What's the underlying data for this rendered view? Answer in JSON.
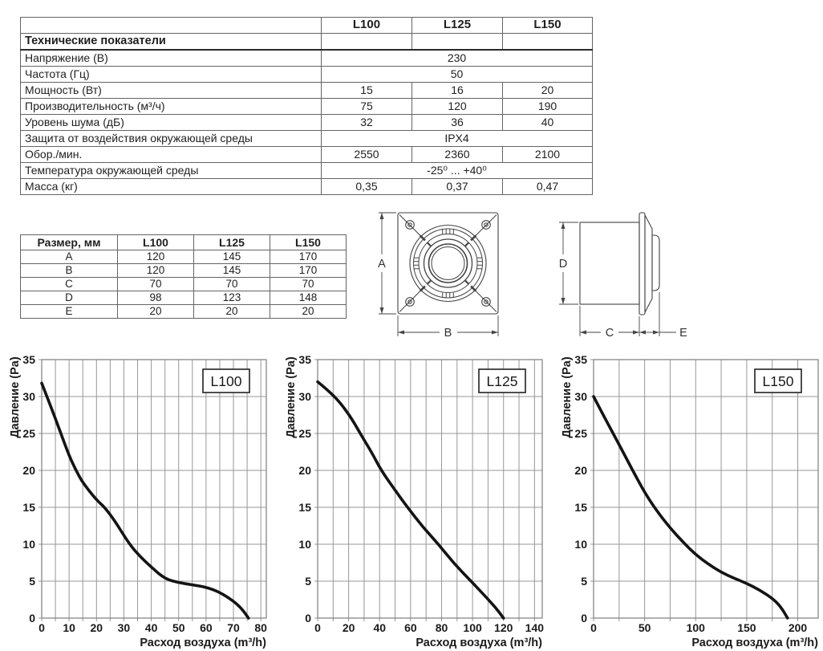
{
  "spec_table": {
    "columns": [
      "",
      "L100",
      "L125",
      "L150"
    ],
    "section_header": "Технические показатели",
    "rows": [
      {
        "label": "Напряжение (В)",
        "values": [
          "230"
        ]
      },
      {
        "label": "Частота (Гц)",
        "values": [
          "50"
        ]
      },
      {
        "label": "Мощность (Вт)",
        "values": [
          "15",
          "16",
          "20"
        ]
      },
      {
        "label": "Производительность (м³/ч)",
        "values": [
          "75",
          "120",
          "190"
        ]
      },
      {
        "label": "Уровень шума (дБ)",
        "values": [
          "32",
          "36",
          "40"
        ]
      },
      {
        "label": "Защита от воздействия окружающей среды",
        "values": [
          "IPX4"
        ]
      },
      {
        "label": "Обор./мин.",
        "values": [
          "2550",
          "2360",
          "2100"
        ]
      },
      {
        "label": "Температура окружающей среды",
        "values": [
          "-25⁰ ... +40⁰"
        ]
      },
      {
        "label": "Масса (кг)",
        "values": [
          "0,35",
          "0,37",
          "0,47"
        ]
      }
    ]
  },
  "size_table": {
    "columns": [
      "Размер, мм",
      "L100",
      "L125",
      "L150"
    ],
    "rows": [
      {
        "label": "A",
        "values": [
          "120",
          "145",
          "170"
        ]
      },
      {
        "label": "B",
        "values": [
          "120",
          "145",
          "170"
        ]
      },
      {
        "label": "C",
        "values": [
          "70",
          "70",
          "70"
        ]
      },
      {
        "label": "D",
        "values": [
          "98",
          "123",
          "148"
        ]
      },
      {
        "label": "E",
        "values": [
          "20",
          "20",
          "20"
        ]
      }
    ]
  },
  "drawings": {
    "a": "A",
    "b": "B",
    "c": "C",
    "d": "D",
    "e": "E"
  },
  "colors": {
    "curve": "#141414",
    "grid": "#979797",
    "text": "#1f1f1f"
  },
  "chart_data": [
    {
      "type": "line",
      "label": "L100",
      "xlabel": "Расход воздуха (m³/h)",
      "ylabel": "Давление (Pa)",
      "xlim": [
        0,
        82
      ],
      "ylim": [
        0,
        35
      ],
      "x_ticks": [
        0,
        10,
        20,
        30,
        40,
        50,
        60,
        70,
        80
      ],
      "x_grid_step": 5,
      "y_ticks": [
        0,
        5,
        10,
        15,
        20,
        25,
        30,
        35
      ],
      "grid": true,
      "points": [
        [
          0,
          31.8
        ],
        [
          4,
          28
        ],
        [
          7,
          25
        ],
        [
          10,
          22
        ],
        [
          12.5,
          20
        ],
        [
          15,
          18.3
        ],
        [
          20,
          16
        ],
        [
          23,
          15
        ],
        [
          27,
          13
        ],
        [
          32,
          10
        ],
        [
          36,
          8.3
        ],
        [
          40,
          6.9
        ],
        [
          45,
          5.3
        ],
        [
          50,
          4.8
        ],
        [
          55,
          4.5
        ],
        [
          60,
          4.2
        ],
        [
          65,
          3.5
        ],
        [
          70,
          2.3
        ],
        [
          73,
          1.3
        ],
        [
          75.5,
          0
        ]
      ]
    },
    {
      "type": "line",
      "label": "L125",
      "xlabel": "Расход воздуха (m³/h)",
      "ylabel": "Давление (Pa)",
      "xlim": [
        0,
        145
      ],
      "ylim": [
        0,
        35
      ],
      "x_ticks": [
        0,
        20,
        40,
        60,
        80,
        100,
        120,
        140
      ],
      "x_grid_step": 10,
      "y_ticks": [
        0,
        5,
        10,
        15,
        20,
        25,
        30,
        35
      ],
      "grid": true,
      "points": [
        [
          0,
          32
        ],
        [
          10,
          30.3
        ],
        [
          20,
          27.7
        ],
        [
          27.5,
          25
        ],
        [
          35,
          22.4
        ],
        [
          41,
          20
        ],
        [
          50,
          17.3
        ],
        [
          58,
          15
        ],
        [
          68,
          12.3
        ],
        [
          78,
          10
        ],
        [
          88,
          7.4
        ],
        [
          99,
          5
        ],
        [
          108,
          3
        ],
        [
          115,
          1.4
        ],
        [
          120,
          0
        ]
      ]
    },
    {
      "type": "line",
      "label": "L150",
      "xlabel": "Расход воздуха (m³/h)",
      "ylabel": "Давление (Pa)",
      "xlim": [
        0,
        220
      ],
      "ylim": [
        0,
        35
      ],
      "x_ticks": [
        0,
        50,
        100,
        150,
        200
      ],
      "x_grid_step": 25,
      "y_ticks": [
        0,
        5,
        10,
        15,
        20,
        25,
        30,
        35
      ],
      "grid": true,
      "points": [
        [
          0,
          30
        ],
        [
          12.5,
          26.7
        ],
        [
          25,
          23.5
        ],
        [
          37.5,
          20.2
        ],
        [
          50,
          17
        ],
        [
          62.5,
          14.4
        ],
        [
          75,
          12.2
        ],
        [
          87.5,
          10.3
        ],
        [
          100,
          8.6
        ],
        [
          112.5,
          7.3
        ],
        [
          125,
          6.2
        ],
        [
          137.5,
          5.4
        ],
        [
          150,
          4.7
        ],
        [
          162.5,
          3.8
        ],
        [
          175,
          2.7
        ],
        [
          183,
          1.6
        ],
        [
          190,
          0
        ]
      ]
    }
  ]
}
